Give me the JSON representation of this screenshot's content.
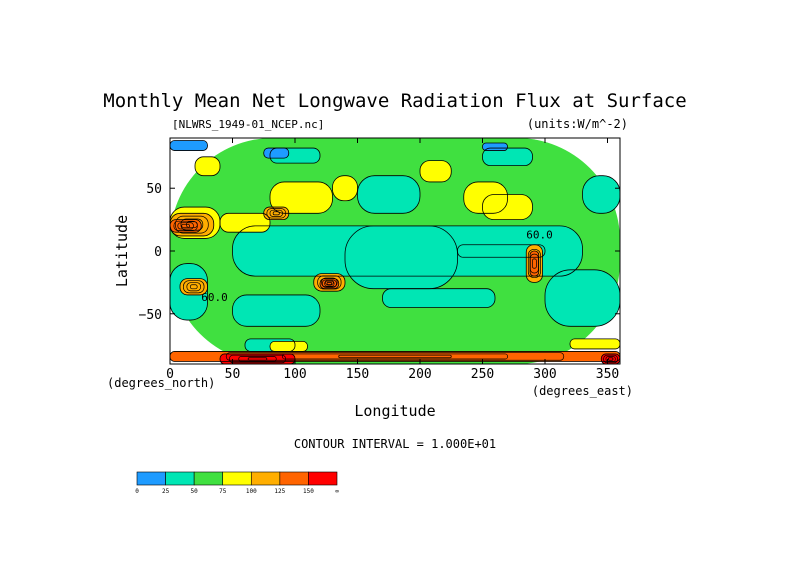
{
  "chart_data": {
    "type": "heatmap",
    "title": "Monthly Mean Net Longwave Radiation Flux at Surface",
    "file_label": "[NLWRS_1949-01_NCEP.nc]",
    "units_label": "(units:W/m^-2)",
    "xlabel": "Longitude",
    "ylabel": "Latitude",
    "x_unit_label": "(degrees_east)",
    "y_unit_label": "(degrees_north)",
    "xlim": [
      0,
      360
    ],
    "ylim": [
      -90,
      90
    ],
    "x_ticks": [
      0,
      50,
      100,
      150,
      200,
      250,
      300,
      350
    ],
    "y_ticks": [
      50,
      0,
      -50
    ],
    "contour_interval_text": "CONTOUR INTERVAL = 1.000E+01",
    "colorbar": {
      "levels": [
        "0",
        "25",
        "50",
        "75",
        "100",
        "125",
        "150",
        "∞"
      ],
      "colors": [
        "#1e9bff",
        "#00e6b4",
        "#40e040",
        "#ffff00",
        "#ffae00",
        "#ff6400",
        "#ff0000"
      ]
    },
    "contour_labels": [
      {
        "text": "60.0",
        "lon": 25,
        "lat": -40
      },
      {
        "text": "60.0",
        "lon": 285,
        "lat": 10
      }
    ],
    "regions": [
      {
        "lon": [
          0,
          360
        ],
        "lat": [
          -90,
          90
        ],
        "level": 2
      },
      {
        "lon": [
          50,
          330
        ],
        "lat": [
          -20,
          20
        ],
        "level": 1
      },
      {
        "lon": [
          140,
          230
        ],
        "lat": [
          -30,
          20
        ],
        "level": 1
      },
      {
        "lon": [
          230,
          300
        ],
        "lat": [
          -5,
          5
        ],
        "level": 1
      },
      {
        "lon": [
          0,
          30
        ],
        "lat": [
          -55,
          -10
        ],
        "level": 1
      },
      {
        "lon": [
          300,
          360
        ],
        "lat": [
          -60,
          -15
        ],
        "level": 1
      },
      {
        "lon": [
          50,
          120
        ],
        "lat": [
          -60,
          -35
        ],
        "level": 1
      },
      {
        "lon": [
          170,
          260
        ],
        "lat": [
          -45,
          -30
        ],
        "level": 1
      },
      {
        "lon": [
          150,
          200
        ],
        "lat": [
          30,
          60
        ],
        "level": 1
      },
      {
        "lon": [
          330,
          360
        ],
        "lat": [
          30,
          60
        ],
        "level": 1
      },
      {
        "lon": [
          80,
          120
        ],
        "lat": [
          70,
          82
        ],
        "level": 1
      },
      {
        "lon": [
          250,
          290
        ],
        "lat": [
          68,
          82
        ],
        "level": 1
      },
      {
        "lon": [
          60,
          100
        ],
        "lat": [
          -80,
          -70
        ],
        "level": 1
      },
      {
        "lon": [
          0,
          40
        ],
        "lat": [
          10,
          35
        ],
        "level": 3
      },
      {
        "lon": [
          40,
          80
        ],
        "lat": [
          15,
          30
        ],
        "level": 3
      },
      {
        "lon": [
          80,
          130
        ],
        "lat": [
          30,
          55
        ],
        "level": 3
      },
      {
        "lon": [
          130,
          150
        ],
        "lat": [
          40,
          60
        ],
        "level": 3
      },
      {
        "lon": [
          200,
          225
        ],
        "lat": [
          55,
          72
        ],
        "level": 3
      },
      {
        "lon": [
          235,
          270
        ],
        "lat": [
          30,
          55
        ],
        "level": 3
      },
      {
        "lon": [
          250,
          290
        ],
        "lat": [
          25,
          45
        ],
        "level": 3
      },
      {
        "lon": [
          20,
          40
        ],
        "lat": [
          60,
          75
        ],
        "level": 3
      },
      {
        "lon": [
          80,
          110
        ],
        "lat": [
          -80,
          -72
        ],
        "level": 3
      },
      {
        "lon": [
          320,
          360
        ],
        "lat": [
          -78,
          -70
        ],
        "level": 3
      },
      {
        "lon": [
          0,
          35
        ],
        "lat": [
          12,
          30
        ],
        "level": 4
      },
      {
        "lon": [
          75,
          95
        ],
        "lat": [
          25,
          35
        ],
        "level": 4
      },
      {
        "lon": [
          0,
          25
        ],
        "lat": [
          15,
          25
        ],
        "level": 5
      },
      {
        "lon": [
          115,
          140
        ],
        "lat": [
          -32,
          -18
        ],
        "level": 4
      },
      {
        "lon": [
          120,
          135
        ],
        "lat": [
          -30,
          -22
        ],
        "level": 5
      },
      {
        "lon": [
          8,
          30
        ],
        "lat": [
          -35,
          -22
        ],
        "level": 4
      },
      {
        "lon": [
          285,
          298
        ],
        "lat": [
          -25,
          5
        ],
        "level": 4
      },
      {
        "lon": [
          288,
          295
        ],
        "lat": [
          -20,
          0
        ],
        "level": 5
      },
      {
        "lon": [
          0,
          360
        ],
        "lat": [
          -88,
          -80
        ],
        "level": 5
      },
      {
        "lon": [
          40,
          100
        ],
        "lat": [
          -90,
          -82
        ],
        "level": 6
      },
      {
        "lon": [
          345,
          360
        ],
        "lat": [
          -90,
          -82
        ],
        "level": 6
      },
      {
        "lon": [
          0,
          30
        ],
        "lat": [
          80,
          88
        ],
        "level": 0
      },
      {
        "lon": [
          75,
          95
        ],
        "lat": [
          74,
          82
        ],
        "level": 0
      },
      {
        "lon": [
          250,
          270
        ],
        "lat": [
          80,
          86
        ],
        "level": 0
      }
    ]
  }
}
